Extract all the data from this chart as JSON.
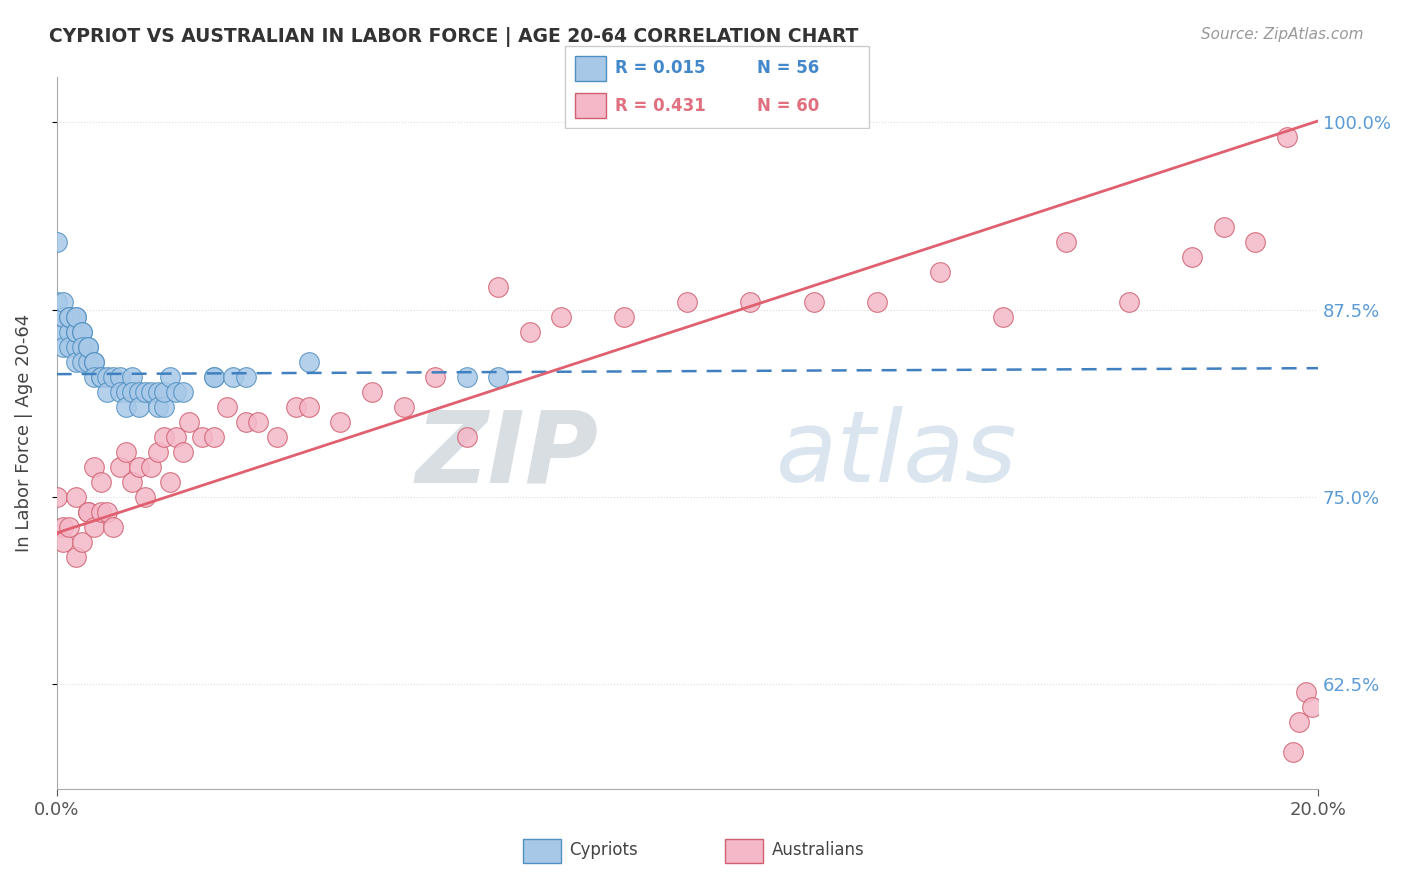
{
  "title": "CYPRIOT VS AUSTRALIAN IN LABOR FORCE | AGE 20-64 CORRELATION CHART",
  "source_text": "Source: ZipAtlas.com",
  "ylabel": "In Labor Force | Age 20-64",
  "yticks": [
    0.625,
    0.75,
    0.875,
    1.0
  ],
  "ytick_labels": [
    "62.5%",
    "75.0%",
    "87.5%",
    "100.0%"
  ],
  "xmin": 0.0,
  "xmax": 0.2,
  "ymin": 0.555,
  "ymax": 1.03,
  "cypriot_color": "#a8c8e8",
  "australian_color": "#f4b8c8",
  "cypriot_edge": "#5090c0",
  "australian_edge": "#d06070",
  "trend_blue_color": "#4080c0",
  "trend_pink_color": "#e06070",
  "legend_blue_R": "R = 0.015",
  "legend_blue_N": "N = 56",
  "legend_pink_R": "R = 0.431",
  "legend_pink_N": "N = 60",
  "legend_blue_text_color": "#4488cc",
  "legend_pink_text_color": "#e07080",
  "cypriot_points_x": [
    0.0,
    0.0,
    0.001,
    0.001,
    0.001,
    0.001,
    0.001,
    0.002,
    0.002,
    0.002,
    0.002,
    0.003,
    0.003,
    0.003,
    0.003,
    0.003,
    0.003,
    0.004,
    0.004,
    0.004,
    0.004,
    0.005,
    0.005,
    0.005,
    0.006,
    0.006,
    0.006,
    0.007,
    0.007,
    0.008,
    0.008,
    0.009,
    0.01,
    0.01,
    0.011,
    0.011,
    0.012,
    0.012,
    0.013,
    0.013,
    0.014,
    0.015,
    0.016,
    0.016,
    0.017,
    0.017,
    0.018,
    0.019,
    0.02,
    0.025,
    0.025,
    0.028,
    0.03,
    0.04,
    0.065,
    0.07
  ],
  "cypriot_points_y": [
    0.92,
    0.88,
    0.86,
    0.87,
    0.87,
    0.88,
    0.85,
    0.86,
    0.87,
    0.87,
    0.85,
    0.85,
    0.86,
    0.86,
    0.87,
    0.87,
    0.84,
    0.86,
    0.86,
    0.85,
    0.84,
    0.84,
    0.85,
    0.85,
    0.84,
    0.84,
    0.83,
    0.83,
    0.83,
    0.83,
    0.82,
    0.83,
    0.83,
    0.82,
    0.82,
    0.81,
    0.83,
    0.82,
    0.82,
    0.81,
    0.82,
    0.82,
    0.82,
    0.81,
    0.81,
    0.82,
    0.83,
    0.82,
    0.82,
    0.83,
    0.83,
    0.83,
    0.83,
    0.84,
    0.83,
    0.83
  ],
  "australian_points_x": [
    0.0,
    0.001,
    0.001,
    0.002,
    0.003,
    0.003,
    0.004,
    0.005,
    0.005,
    0.006,
    0.006,
    0.007,
    0.007,
    0.008,
    0.009,
    0.01,
    0.011,
    0.012,
    0.013,
    0.014,
    0.015,
    0.016,
    0.017,
    0.018,
    0.019,
    0.02,
    0.021,
    0.023,
    0.025,
    0.027,
    0.03,
    0.032,
    0.035,
    0.038,
    0.04,
    0.045,
    0.05,
    0.055,
    0.06,
    0.065,
    0.07,
    0.075,
    0.08,
    0.09,
    0.1,
    0.11,
    0.12,
    0.13,
    0.14,
    0.15,
    0.16,
    0.17,
    0.18,
    0.185,
    0.19,
    0.195,
    0.196,
    0.197,
    0.198,
    0.199
  ],
  "australian_points_y": [
    0.75,
    0.73,
    0.72,
    0.73,
    0.71,
    0.75,
    0.72,
    0.74,
    0.74,
    0.73,
    0.77,
    0.74,
    0.76,
    0.74,
    0.73,
    0.77,
    0.78,
    0.76,
    0.77,
    0.75,
    0.77,
    0.78,
    0.79,
    0.76,
    0.79,
    0.78,
    0.8,
    0.79,
    0.79,
    0.81,
    0.8,
    0.8,
    0.79,
    0.81,
    0.81,
    0.8,
    0.82,
    0.81,
    0.83,
    0.79,
    0.89,
    0.86,
    0.87,
    0.87,
    0.88,
    0.88,
    0.88,
    0.88,
    0.9,
    0.87,
    0.92,
    0.88,
    0.91,
    0.93,
    0.92,
    0.99,
    0.58,
    0.6,
    0.62,
    0.61
  ],
  "blue_trend_y0": 0.832,
  "blue_trend_y1": 0.836,
  "pink_trend_y0": 0.726,
  "pink_trend_y1": 1.001,
  "grid_color": "#dddddd",
  "spine_color": "#aaaaaa"
}
